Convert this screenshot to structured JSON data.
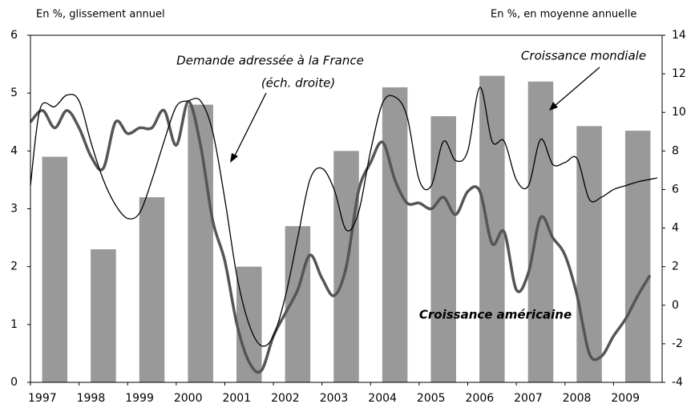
{
  "chart_data": {
    "type": "bar-line",
    "left_axis_label": "En %, glissement annuel",
    "right_axis_label": "En %, en moyenne annuelle",
    "xlim": [
      1997,
      2010
    ],
    "xticks": [
      1997,
      1998,
      1999,
      2000,
      2001,
      2002,
      2003,
      2004,
      2005,
      2006,
      2007,
      2008,
      2009
    ],
    "ylim": [
      0,
      6
    ],
    "yticks": [
      0,
      1,
      2,
      3,
      4,
      5,
      6
    ],
    "y2lim": [
      -4,
      14
    ],
    "y2ticks": [
      -4,
      -2,
      0,
      2,
      4,
      6,
      8,
      10,
      12,
      14
    ],
    "series": [
      {
        "name": "Croissance mondiale",
        "type": "bar",
        "color": "#999999",
        "x": [
          1997,
          1998,
          1999,
          2000,
          2001,
          2002,
          2003,
          2004,
          2005,
          2006,
          2007,
          2008,
          2009
        ],
        "values": [
          3.9,
          2.3,
          3.2,
          4.8,
          2.0,
          2.7,
          4.0,
          5.1,
          4.6,
          5.3,
          5.2,
          4.43,
          4.35
        ]
      },
      {
        "name": "Croissance américaine",
        "type": "line",
        "color": "#555555",
        "width": 3.5,
        "x": [
          1997.0,
          1997.25,
          1997.5,
          1997.75,
          1998.0,
          1998.25,
          1998.5,
          1998.75,
          1999.0,
          1999.25,
          1999.5,
          1999.75,
          2000.0,
          2000.25,
          2000.5,
          2000.75,
          2001.0,
          2001.25,
          2001.5,
          2001.75,
          2002.0,
          2002.25,
          2002.5,
          2002.75,
          2003.0,
          2003.25,
          2003.5,
          2003.75,
          2004.0,
          2004.25,
          2004.5,
          2004.75,
          2005.0,
          2005.25,
          2005.5,
          2005.75,
          2006.0,
          2006.25,
          2006.5,
          2006.75,
          2007.0,
          2007.25,
          2007.5,
          2007.75,
          2008.0,
          2008.25,
          2008.5,
          2008.75,
          2009.0,
          2009.25,
          2009.5,
          2009.75
        ],
        "values": [
          4.5,
          4.7,
          4.4,
          4.7,
          4.4,
          3.9,
          3.7,
          4.5,
          4.3,
          4.4,
          4.4,
          4.7,
          4.1,
          4.85,
          4.1,
          2.8,
          2.1,
          1.0,
          0.35,
          0.2,
          0.8,
          1.2,
          1.6,
          2.2,
          1.8,
          1.5,
          2.0,
          3.3,
          3.8,
          4.15,
          3.5,
          3.1,
          3.1,
          3.0,
          3.2,
          2.9,
          3.3,
          3.3,
          2.4,
          2.6,
          1.6,
          1.9,
          2.85,
          2.5,
          2.2,
          1.5,
          0.5,
          0.45,
          0.8,
          1.1,
          1.5,
          1.85
        ]
      },
      {
        "name": "Demande adressée à la France",
        "note": "(éch. droite)",
        "type": "line",
        "axis": "y2",
        "color": "#000000",
        "width": 1.3,
        "x": [
          1997.0,
          1997.2,
          1997.5,
          1997.75,
          1998.0,
          1998.25,
          1998.5,
          1998.75,
          1999.0,
          1999.25,
          1999.5,
          1999.75,
          2000.0,
          2000.25,
          2000.5,
          2000.75,
          2001.0,
          2001.25,
          2001.5,
          2001.75,
          2002.0,
          2002.25,
          2002.5,
          2002.75,
          2003.0,
          2003.25,
          2003.5,
          2003.75,
          2004.0,
          2004.25,
          2004.5,
          2004.75,
          2005.0,
          2005.25,
          2005.5,
          2005.75,
          2006.0,
          2006.25,
          2006.5,
          2006.75,
          2007.0,
          2007.25,
          2007.5,
          2007.75,
          2008.0,
          2008.25,
          2008.5,
          2008.75,
          2009.0,
          2009.25,
          2009.5,
          2009.9
        ],
        "values": [
          6.2,
          10.2,
          10.3,
          10.9,
          10.6,
          8.4,
          6.5,
          5.2,
          4.5,
          4.8,
          6.5,
          8.5,
          10.3,
          10.6,
          10.6,
          9.0,
          5.5,
          1.5,
          -1.0,
          -2.1,
          -1.6,
          0.5,
          3.5,
          6.5,
          7.1,
          6.0,
          3.9,
          4.8,
          8.0,
          10.5,
          10.8,
          9.8,
          6.5,
          6.2,
          8.5,
          7.5,
          8.0,
          11.3,
          8.5,
          8.5,
          6.5,
          6.2,
          8.6,
          7.3,
          7.4,
          7.6,
          5.5,
          5.6,
          6.0,
          6.2,
          6.4,
          6.6
        ]
      }
    ]
  }
}
